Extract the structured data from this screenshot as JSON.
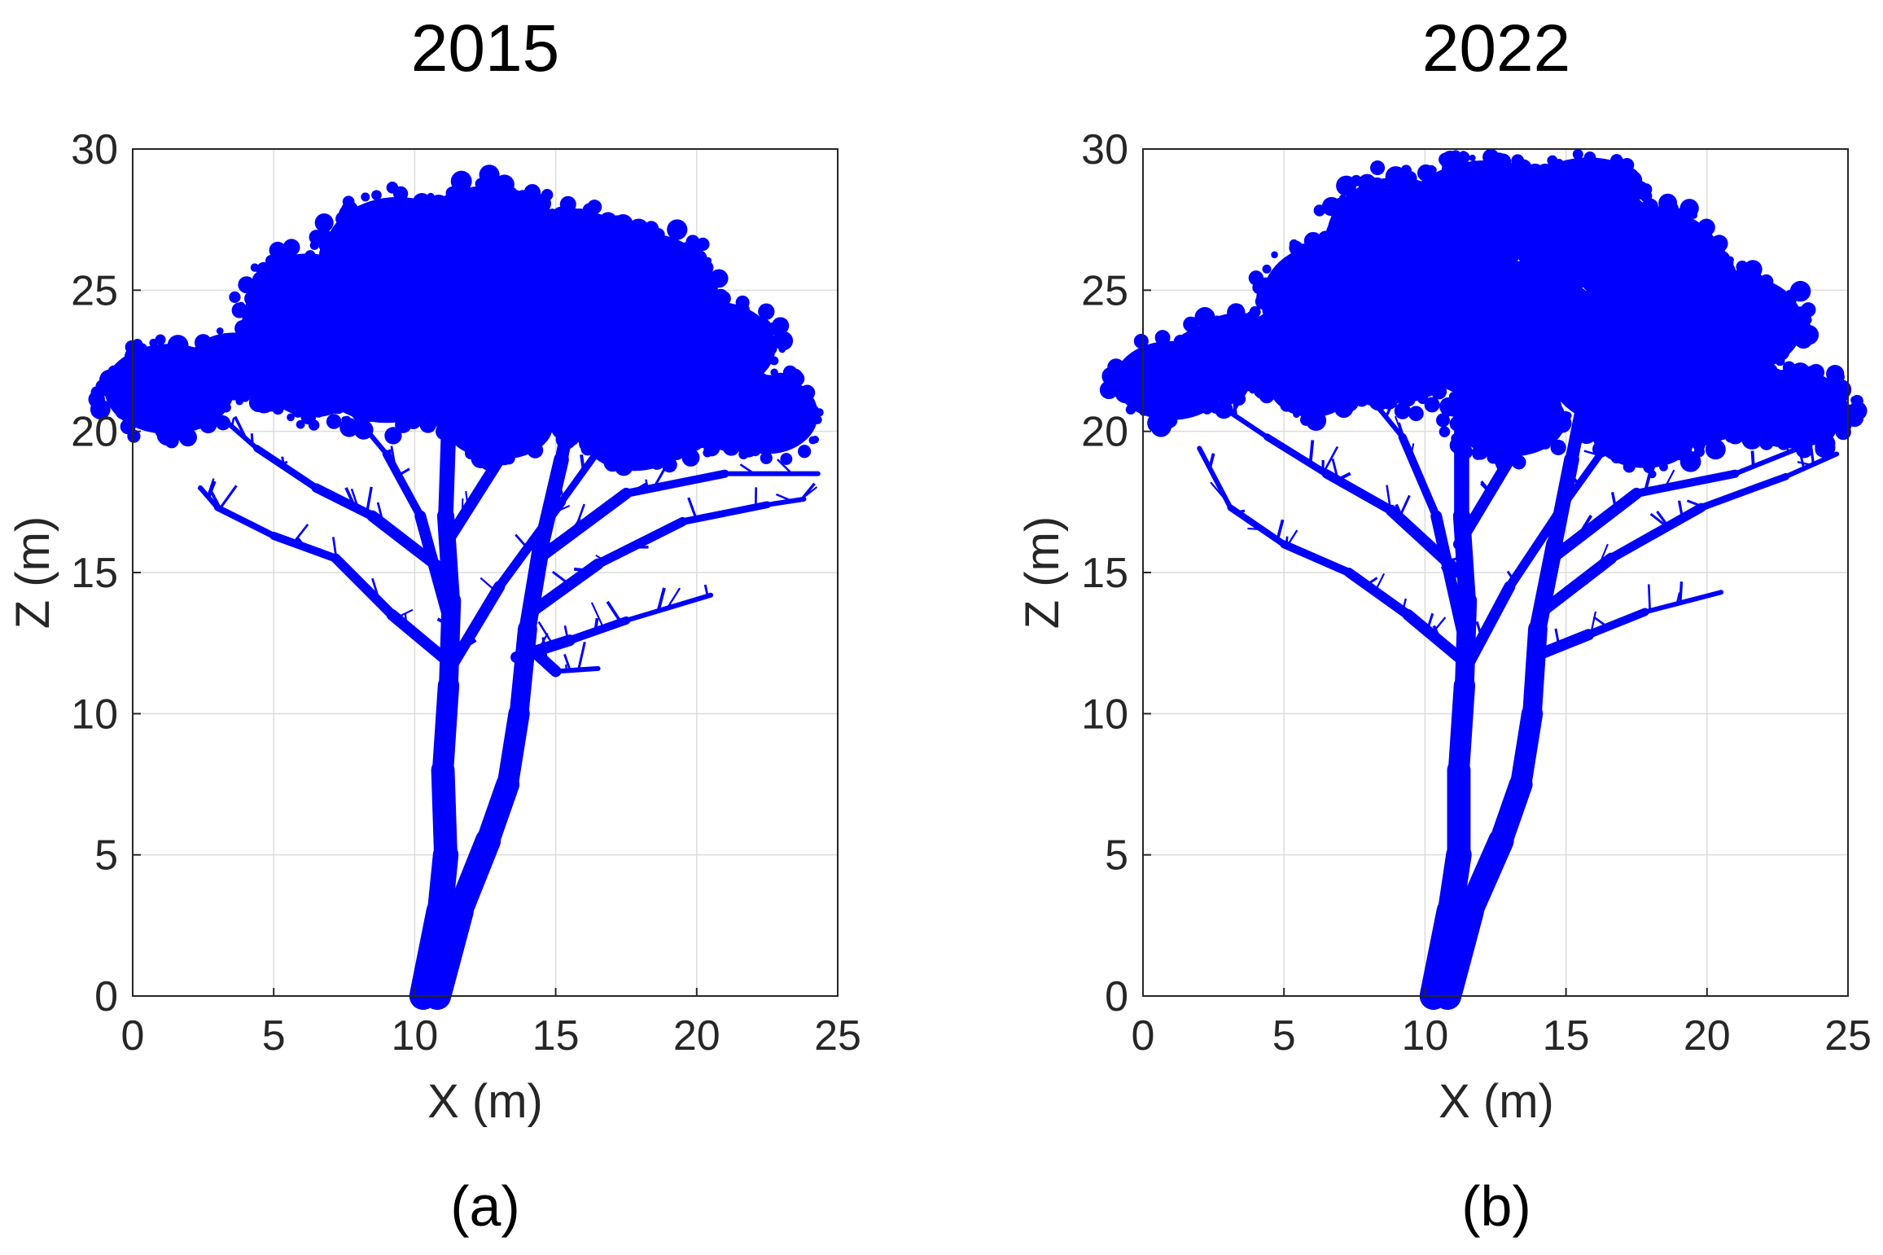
{
  "chart_data": [
    {
      "type": "scatter",
      "title": "2015",
      "panel_label": "(a)",
      "xlabel": "X (m)",
      "ylabel": "Z (m)",
      "xlim": [
        0,
        25
      ],
      "ylim": [
        0,
        30
      ],
      "xticks": [
        "0",
        "5",
        "10",
        "15",
        "20",
        "25"
      ],
      "yticks": [
        "0",
        "5",
        "10",
        "15",
        "20",
        "25",
        "30"
      ],
      "grid": true,
      "color": "#0000ff",
      "structure": {
        "trunks": [
          [
            [
              10.3,
              0
            ],
            [
              10.9,
              3
            ],
            [
              11.1,
              5
            ],
            [
              11.0,
              8
            ],
            [
              11.2,
              11
            ],
            [
              11.3,
              14
            ],
            [
              11.1,
              17
            ],
            [
              11.2,
              20
            ],
            [
              11.0,
              23
            ]
          ],
          [
            [
              10.8,
              0
            ],
            [
              11.6,
              3
            ],
            [
              12.6,
              5.5
            ],
            [
              13.3,
              7.5
            ],
            [
              13.7,
              10
            ],
            [
              14.0,
              13
            ],
            [
              14.5,
              16
            ],
            [
              15.2,
              19
            ],
            [
              15.8,
              22
            ]
          ]
        ],
        "branches": [
          [
            [
              11.0,
              12
            ],
            [
              9.2,
              13.5
            ],
            [
              7.2,
              15.5
            ],
            [
              5.0,
              16.3
            ],
            [
              3.0,
              17.3
            ],
            [
              2.4,
              18.0
            ]
          ],
          [
            [
              11.1,
              15
            ],
            [
              8.5,
              17.0
            ],
            [
              6.5,
              18.0
            ],
            [
              4.4,
              19.4
            ],
            [
              2.8,
              20.8
            ]
          ],
          [
            [
              11.3,
              13
            ],
            [
              10.2,
              17.0
            ],
            [
              9.0,
              19.2
            ],
            [
              7.5,
              21.0
            ]
          ],
          [
            [
              11.2,
              11.5
            ],
            [
              13.0,
              14.5
            ],
            [
              15.2,
              17.5
            ],
            [
              17.0,
              20.0
            ],
            [
              19.0,
              22.0
            ]
          ],
          [
            [
              13.6,
              12
            ],
            [
              15.5,
              12.6
            ],
            [
              17.5,
              13.3
            ],
            [
              20.5,
              14.2
            ]
          ],
          [
            [
              14.0,
              13.5
            ],
            [
              16.5,
              15.3
            ],
            [
              19.5,
              16.8
            ],
            [
              22.5,
              17.4
            ],
            [
              23.8,
              17.6
            ]
          ],
          [
            [
              14.4,
              15.5
            ],
            [
              17.5,
              17.8
            ],
            [
              21.0,
              18.5
            ],
            [
              24.3,
              18.5
            ]
          ],
          [
            [
              13.9,
              12.5
            ],
            [
              15.0,
              11.5
            ],
            [
              16.5,
              11.6
            ]
          ],
          [
            [
              11.1,
              16
            ],
            [
              13.0,
              19.0
            ],
            [
              14.2,
              22.0
            ],
            [
              14.5,
              25.5
            ]
          ]
        ],
        "canopy": [
          [
            1.3,
            21.5,
            2.3,
            1.6
          ],
          [
            3.6,
            22.3,
            1.7,
            1.2
          ],
          [
            6.2,
            24.4,
            2.2,
            1.9
          ],
          [
            9.4,
            26.3,
            2.6,
            2.0
          ],
          [
            12.6,
            26.7,
            2.7,
            2.0
          ],
          [
            15.8,
            25.8,
            2.4,
            2.0
          ],
          [
            18.3,
            25.0,
            2.3,
            2.0
          ],
          [
            20.6,
            23.0,
            2.2,
            1.6
          ],
          [
            22.5,
            20.6,
            1.8,
            1.4
          ],
          [
            9.0,
            22.6,
            2.8,
            2.3
          ],
          [
            12.6,
            22.8,
            3.2,
            2.6
          ],
          [
            16.8,
            22.2,
            2.6,
            2.4
          ],
          [
            20.0,
            21.2,
            2.2,
            1.8
          ],
          [
            13.0,
            20.2,
            1.9,
            1.2
          ],
          [
            17.8,
            19.8,
            1.8,
            1.2
          ],
          [
            6.4,
            22.0,
            1.8,
            1.5
          ]
        ]
      }
    },
    {
      "type": "scatter",
      "title": "2022",
      "panel_label": "(b)",
      "xlabel": "X (m)",
      "ylabel": "Z (m)",
      "xlim": [
        0,
        25
      ],
      "ylim": [
        0,
        30
      ],
      "xticks": [
        "0",
        "5",
        "10",
        "15",
        "20",
        "25"
      ],
      "yticks": [
        "0",
        "5",
        "10",
        "15",
        "20",
        "25",
        "30"
      ],
      "grid": true,
      "color": "#0000ff",
      "structure": {
        "trunks": [
          [
            [
              10.3,
              0
            ],
            [
              10.9,
              3
            ],
            [
              11.2,
              5
            ],
            [
              11.2,
              8
            ],
            [
              11.4,
              11
            ],
            [
              11.5,
              14
            ],
            [
              11.3,
              17
            ],
            [
              11.3,
              20
            ],
            [
              11.2,
              23
            ]
          ],
          [
            [
              10.8,
              0
            ],
            [
              11.6,
              3
            ],
            [
              12.7,
              5.5
            ],
            [
              13.4,
              7.5
            ],
            [
              13.8,
              10
            ],
            [
              14.0,
              13
            ],
            [
              14.6,
              16
            ],
            [
              15.2,
              19
            ],
            [
              15.8,
              22
            ]
          ]
        ],
        "branches": [
          [
            [
              11.2,
              12
            ],
            [
              9.4,
              13.5
            ],
            [
              7.3,
              15.0
            ],
            [
              5.0,
              16.0
            ],
            [
              3.1,
              17.3
            ],
            [
              2.0,
              19.4
            ]
          ],
          [
            [
              11.2,
              15
            ],
            [
              8.8,
              17.2
            ],
            [
              6.5,
              18.5
            ],
            [
              4.4,
              19.8
            ],
            [
              2.6,
              21.0
            ]
          ],
          [
            [
              11.3,
              13
            ],
            [
              10.4,
              17.0
            ],
            [
              9.2,
              19.8
            ],
            [
              7.8,
              21.5
            ]
          ],
          [
            [
              11.4,
              11.5
            ],
            [
              13.0,
              14.5
            ],
            [
              15.0,
              17.5
            ],
            [
              16.8,
              20.0
            ],
            [
              18.5,
              22.0
            ]
          ],
          [
            [
              13.8,
              12
            ],
            [
              15.8,
              12.8
            ],
            [
              17.8,
              13.6
            ],
            [
              20.5,
              14.3
            ]
          ],
          [
            [
              14.0,
              13.5
            ],
            [
              16.6,
              15.5
            ],
            [
              19.8,
              17.3
            ],
            [
              22.8,
              18.4
            ],
            [
              24.6,
              19.2
            ]
          ],
          [
            [
              14.5,
              15.5
            ],
            [
              17.5,
              17.8
            ],
            [
              21.0,
              18.5
            ],
            [
              23.5,
              19.5
            ]
          ],
          [
            [
              11.2,
              16
            ],
            [
              13.0,
              19.0
            ],
            [
              14.2,
              22.0
            ],
            [
              14.6,
              25.5
            ]
          ]
        ],
        "canopy": [
          [
            1.0,
            21.8,
            2.0,
            1.4
          ],
          [
            3.4,
            22.8,
            1.8,
            1.4
          ],
          [
            6.4,
            24.6,
            2.2,
            2.0
          ],
          [
            9.0,
            26.8,
            2.5,
            2.2
          ],
          [
            12.2,
            27.8,
            2.8,
            1.8
          ],
          [
            15.6,
            27.0,
            2.6,
            1.9
          ],
          [
            18.4,
            25.8,
            2.2,
            2.0
          ],
          [
            21.2,
            23.8,
            2.2,
            1.7
          ],
          [
            23.0,
            20.8,
            2.0,
            1.4
          ],
          [
            9.0,
            23.2,
            2.6,
            2.2
          ],
          [
            12.4,
            23.6,
            3.0,
            2.5
          ],
          [
            16.8,
            22.6,
            2.6,
            2.4
          ],
          [
            19.8,
            21.4,
            2.4,
            1.8
          ],
          [
            13.0,
            20.4,
            2.0,
            1.3
          ],
          [
            17.8,
            20.0,
            1.9,
            1.3
          ],
          [
            6.0,
            21.8,
            1.6,
            1.3
          ],
          [
            15.8,
            29.0,
            1.6,
            0.7
          ]
        ]
      }
    }
  ]
}
